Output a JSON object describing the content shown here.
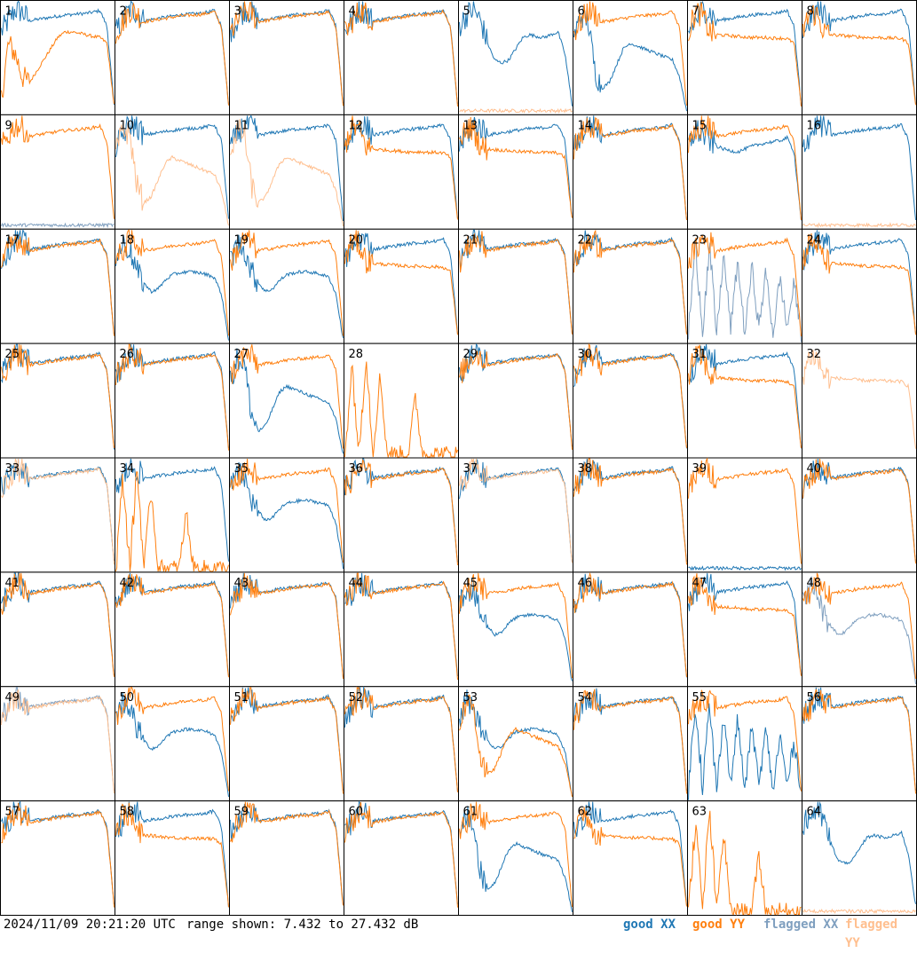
{
  "chart_data": {
    "type": "line",
    "layout_note": "small-multiples",
    "panels": [
      {
        "label": "1",
        "status": {
          "xx": "good",
          "yy": "good"
        },
        "shape": {
          "xx": "s1",
          "yy": "s9"
        }
      },
      {
        "label": "2",
        "status": {
          "xx": "good",
          "yy": "good"
        },
        "shape": {
          "xx": "s1",
          "yy": "s1"
        }
      },
      {
        "label": "3",
        "status": {
          "xx": "good",
          "yy": "good"
        },
        "shape": {
          "xx": "s1",
          "yy": "s1"
        }
      },
      {
        "label": "4",
        "status": {
          "xx": "good",
          "yy": "good"
        },
        "shape": {
          "xx": "s1",
          "yy": "s1"
        }
      },
      {
        "label": "5",
        "status": {
          "xx": "good",
          "yy": "flagged"
        },
        "shape": {
          "xx": "s2",
          "yy": "s10"
        }
      },
      {
        "label": "6",
        "status": {
          "xx": "good",
          "yy": "good"
        },
        "shape": {
          "xx": "s3",
          "yy": "s1"
        }
      },
      {
        "label": "7",
        "status": {
          "xx": "good",
          "yy": "good"
        },
        "shape": {
          "xx": "s1",
          "yy": "s4"
        }
      },
      {
        "label": "8",
        "status": {
          "xx": "good",
          "yy": "good"
        },
        "shape": {
          "xx": "s1",
          "yy": "s4"
        }
      },
      {
        "label": "9",
        "status": {
          "xx": "flagged",
          "yy": "good"
        },
        "shape": {
          "xx": "s10",
          "yy": "s1"
        }
      },
      {
        "label": "10",
        "status": {
          "xx": "good",
          "yy": "flagged"
        },
        "shape": {
          "xx": "s1",
          "yy": "s3"
        }
      },
      {
        "label": "11",
        "status": {
          "xx": "good",
          "yy": "flagged"
        },
        "shape": {
          "xx": "s1",
          "yy": "s3"
        }
      },
      {
        "label": "12",
        "status": {
          "xx": "good",
          "yy": "good"
        },
        "shape": {
          "xx": "s1",
          "yy": "s4"
        }
      },
      {
        "label": "13",
        "status": {
          "xx": "good",
          "yy": "good"
        },
        "shape": {
          "xx": "s1",
          "yy": "s4"
        }
      },
      {
        "label": "14",
        "status": {
          "xx": "good",
          "yy": "good"
        },
        "shape": {
          "xx": "s1",
          "yy": "s1"
        }
      },
      {
        "label": "15",
        "status": {
          "xx": "good",
          "yy": "good"
        },
        "shape": {
          "xx": "s5",
          "yy": "s1"
        }
      },
      {
        "label": "16",
        "status": {
          "xx": "good",
          "yy": "flagged"
        },
        "shape": {
          "xx": "s1",
          "yy": "s10"
        }
      },
      {
        "label": "17",
        "status": {
          "xx": "good",
          "yy": "good"
        },
        "shape": {
          "xx": "s1",
          "yy": "s1"
        }
      },
      {
        "label": "18",
        "status": {
          "xx": "good",
          "yy": "good"
        },
        "shape": {
          "xx": "s6",
          "yy": "s1"
        }
      },
      {
        "label": "19",
        "status": {
          "xx": "good",
          "yy": "good"
        },
        "shape": {
          "xx": "s6",
          "yy": "s1"
        }
      },
      {
        "label": "20",
        "status": {
          "xx": "good",
          "yy": "good"
        },
        "shape": {
          "xx": "s1",
          "yy": "s4"
        }
      },
      {
        "label": "21",
        "status": {
          "xx": "good",
          "yy": "good"
        },
        "shape": {
          "xx": "s1",
          "yy": "s1"
        }
      },
      {
        "label": "22",
        "status": {
          "xx": "good",
          "yy": "good"
        },
        "shape": {
          "xx": "s1",
          "yy": "s1"
        }
      },
      {
        "label": "23",
        "status": {
          "xx": "flagged",
          "yy": "good"
        },
        "shape": {
          "xx": "s7",
          "yy": "s1"
        }
      },
      {
        "label": "24",
        "status": {
          "xx": "good",
          "yy": "good"
        },
        "shape": {
          "xx": "s1",
          "yy": "s4"
        }
      },
      {
        "label": "25",
        "status": {
          "xx": "good",
          "yy": "good"
        },
        "shape": {
          "xx": "s1",
          "yy": "s1"
        }
      },
      {
        "label": "26",
        "status": {
          "xx": "good",
          "yy": "good"
        },
        "shape": {
          "xx": "s1",
          "yy": "s1"
        }
      },
      {
        "label": "27",
        "status": {
          "xx": "good",
          "yy": "good"
        },
        "shape": {
          "xx": "s3",
          "yy": "s1"
        }
      },
      {
        "label": "28",
        "status": {
          "xx": "none",
          "yy": "good"
        },
        "shape": {
          "xx": "none",
          "yy": "s8"
        }
      },
      {
        "label": "29",
        "status": {
          "xx": "good",
          "yy": "good"
        },
        "shape": {
          "xx": "s1",
          "yy": "s1"
        }
      },
      {
        "label": "30",
        "status": {
          "xx": "good",
          "yy": "good"
        },
        "shape": {
          "xx": "s1",
          "yy": "s1"
        }
      },
      {
        "label": "31",
        "status": {
          "xx": "good",
          "yy": "good"
        },
        "shape": {
          "xx": "s1",
          "yy": "s4"
        }
      },
      {
        "label": "32",
        "status": {
          "xx": "none",
          "yy": "flagged"
        },
        "shape": {
          "xx": "none",
          "yy": "s4"
        }
      },
      {
        "label": "33",
        "status": {
          "xx": "good",
          "yy": "flagged"
        },
        "shape": {
          "xx": "s1",
          "yy": "s1"
        }
      },
      {
        "label": "34",
        "status": {
          "xx": "good",
          "yy": "good"
        },
        "shape": {
          "xx": "s1",
          "yy": "s8"
        }
      },
      {
        "label": "35",
        "status": {
          "xx": "good",
          "yy": "good"
        },
        "shape": {
          "xx": "s6",
          "yy": "s1"
        }
      },
      {
        "label": "36",
        "status": {
          "xx": "good",
          "yy": "good"
        },
        "shape": {
          "xx": "s1",
          "yy": "s1"
        }
      },
      {
        "label": "37",
        "status": {
          "xx": "good",
          "yy": "flagged"
        },
        "shape": {
          "xx": "s1",
          "yy": "s1"
        }
      },
      {
        "label": "38",
        "status": {
          "xx": "good",
          "yy": "good"
        },
        "shape": {
          "xx": "s1",
          "yy": "s1"
        }
      },
      {
        "label": "39",
        "status": {
          "xx": "good",
          "yy": "good"
        },
        "shape": {
          "xx": "s10",
          "yy": "s1"
        }
      },
      {
        "label": "40",
        "status": {
          "xx": "good",
          "yy": "good"
        },
        "shape": {
          "xx": "s1",
          "yy": "s1"
        }
      },
      {
        "label": "41",
        "status": {
          "xx": "good",
          "yy": "good"
        },
        "shape": {
          "xx": "s1",
          "yy": "s1"
        }
      },
      {
        "label": "42",
        "status": {
          "xx": "good",
          "yy": "good"
        },
        "shape": {
          "xx": "s1",
          "yy": "s1"
        }
      },
      {
        "label": "43",
        "status": {
          "xx": "good",
          "yy": "good"
        },
        "shape": {
          "xx": "s1",
          "yy": "s1"
        }
      },
      {
        "label": "44",
        "status": {
          "xx": "good",
          "yy": "good"
        },
        "shape": {
          "xx": "s1",
          "yy": "s1"
        }
      },
      {
        "label": "45",
        "status": {
          "xx": "good",
          "yy": "good"
        },
        "shape": {
          "xx": "s6",
          "yy": "s1"
        }
      },
      {
        "label": "46",
        "status": {
          "xx": "good",
          "yy": "good"
        },
        "shape": {
          "xx": "s1",
          "yy": "s1"
        }
      },
      {
        "label": "47",
        "status": {
          "xx": "good",
          "yy": "good"
        },
        "shape": {
          "xx": "s1",
          "yy": "s4"
        }
      },
      {
        "label": "48",
        "status": {
          "xx": "flagged",
          "yy": "good"
        },
        "shape": {
          "xx": "s6",
          "yy": "s1"
        }
      },
      {
        "label": "49",
        "status": {
          "xx": "flagged",
          "yy": "flagged"
        },
        "shape": {
          "xx": "s1",
          "yy": "s1"
        }
      },
      {
        "label": "50",
        "status": {
          "xx": "good",
          "yy": "good"
        },
        "shape": {
          "xx": "s6",
          "yy": "s1"
        }
      },
      {
        "label": "51",
        "status": {
          "xx": "good",
          "yy": "good"
        },
        "shape": {
          "xx": "s1",
          "yy": "s1"
        }
      },
      {
        "label": "52",
        "status": {
          "xx": "good",
          "yy": "good"
        },
        "shape": {
          "xx": "s1",
          "yy": "s1"
        }
      },
      {
        "label": "53",
        "status": {
          "xx": "good",
          "yy": "good"
        },
        "shape": {
          "xx": "s6",
          "yy": "s3"
        }
      },
      {
        "label": "54",
        "status": {
          "xx": "good",
          "yy": "good"
        },
        "shape": {
          "xx": "s1",
          "yy": "s1"
        }
      },
      {
        "label": "55",
        "status": {
          "xx": "good",
          "yy": "good"
        },
        "shape": {
          "xx": "s7",
          "yy": "s1"
        }
      },
      {
        "label": "56",
        "status": {
          "xx": "good",
          "yy": "good"
        },
        "shape": {
          "xx": "s1",
          "yy": "s1"
        }
      },
      {
        "label": "57",
        "status": {
          "xx": "good",
          "yy": "good"
        },
        "shape": {
          "xx": "s1",
          "yy": "s1"
        }
      },
      {
        "label": "58",
        "status": {
          "xx": "good",
          "yy": "good"
        },
        "shape": {
          "xx": "s1",
          "yy": "s4"
        }
      },
      {
        "label": "59",
        "status": {
          "xx": "good",
          "yy": "good"
        },
        "shape": {
          "xx": "s1",
          "yy": "s1"
        }
      },
      {
        "label": "60",
        "status": {
          "xx": "good",
          "yy": "good"
        },
        "shape": {
          "xx": "s1",
          "yy": "s1"
        }
      },
      {
        "label": "61",
        "status": {
          "xx": "good",
          "yy": "good"
        },
        "shape": {
          "xx": "s3",
          "yy": "s1"
        }
      },
      {
        "label": "62",
        "status": {
          "xx": "good",
          "yy": "good"
        },
        "shape": {
          "xx": "s1",
          "yy": "s4"
        }
      },
      {
        "label": "63",
        "status": {
          "xx": "none",
          "yy": "good"
        },
        "shape": {
          "xx": "none",
          "yy": "s8"
        }
      },
      {
        "label": "64",
        "status": {
          "xx": "good",
          "yy": "flagged"
        },
        "shape": {
          "xx": "s2",
          "yy": "s10"
        }
      }
    ],
    "shapes": {
      "s1": {
        "desc": "flat band with spiky start",
        "y": [
          22,
          24,
          26,
          25.5,
          24,
          24.2,
          24.4,
          24.6,
          24.8,
          25,
          25.1,
          25.2,
          25.3,
          25.5,
          25.8,
          23,
          9
        ]
      },
      "s2": {
        "desc": "high start, dip, recovery",
        "y": [
          23,
          25,
          26,
          24,
          20,
          17,
          16.5,
          17,
          19,
          21,
          21.5,
          21.2,
          21,
          21.5,
          22,
          18,
          9
        ]
      },
      "s3": {
        "desc": "deep dip",
        "y": [
          21,
          25,
          24,
          15,
          12,
          13,
          16,
          19,
          20,
          19.5,
          19,
          18.5,
          18,
          17.5,
          17,
          14,
          8
        ]
      },
      "s4": {
        "desc": "high start then lower plateau",
        "y": [
          22,
          25.5,
          25,
          22,
          21.5,
          21.4,
          21.3,
          21.2,
          21.1,
          21,
          21,
          21,
          20.9,
          20.9,
          20.8,
          20,
          9
        ]
      },
      "s5": {
        "desc": "plateau with mid dip",
        "y": [
          22,
          25,
          24,
          23,
          22,
          21.5,
          21.2,
          21,
          21.5,
          22,
          22.3,
          22.6,
          22.8,
          23,
          23.5,
          21,
          9
        ]
      },
      "s6": {
        "desc": "spiky start then dip then plateau",
        "y": [
          22,
          25,
          24,
          20,
          18,
          16.5,
          17,
          18.5,
          19.5,
          19.8,
          20,
          20,
          19.8,
          19.5,
          19,
          16,
          8
        ]
      },
      "s7": {
        "desc": "sparse noisy",
        "y": [
          9,
          25,
          10,
          24,
          9,
          23,
          10,
          22,
          9,
          21,
          10,
          20,
          9,
          19,
          10,
          18,
          9
        ]
      },
      "s8": {
        "desc": "sparse spikes",
        "y": [
          8,
          24,
          8,
          26,
          8,
          22,
          8,
          8,
          8,
          8,
          18,
          8,
          8,
          8,
          8,
          8,
          8
        ]
      },
      "s9": {
        "desc": "low with rise",
        "y": [
          10,
          20,
          18,
          14,
          13,
          15,
          17,
          19,
          21,
          22,
          22,
          21.8,
          21.5,
          21.2,
          21,
          20,
          9
        ]
      },
      "s10": {
        "desc": "mostly floor",
        "y": [
          8,
          8,
          8,
          8,
          8,
          8,
          8,
          8,
          8,
          8,
          8,
          8,
          8,
          8,
          8,
          8,
          8
        ]
      }
    },
    "ylim": [
      7.432,
      27.432
    ],
    "rows": 8,
    "cols": 8
  },
  "colors": {
    "good_xx": "#1f77b4",
    "good_yy": "#ff7f0e",
    "flagged_xx": "#7f9fbf",
    "flagged_yy": "#ffbf8f",
    "frame": "#000000"
  },
  "footer": {
    "timestamp": "2024/11/09 20:21:20 UTC",
    "range": "range shown: 7.432 to 27.432 dB",
    "legend": {
      "good_xx": "good XX",
      "good_yy": "good YY",
      "flagged_xx": "flagged XX",
      "flagged_yy": "flagged YY"
    }
  }
}
